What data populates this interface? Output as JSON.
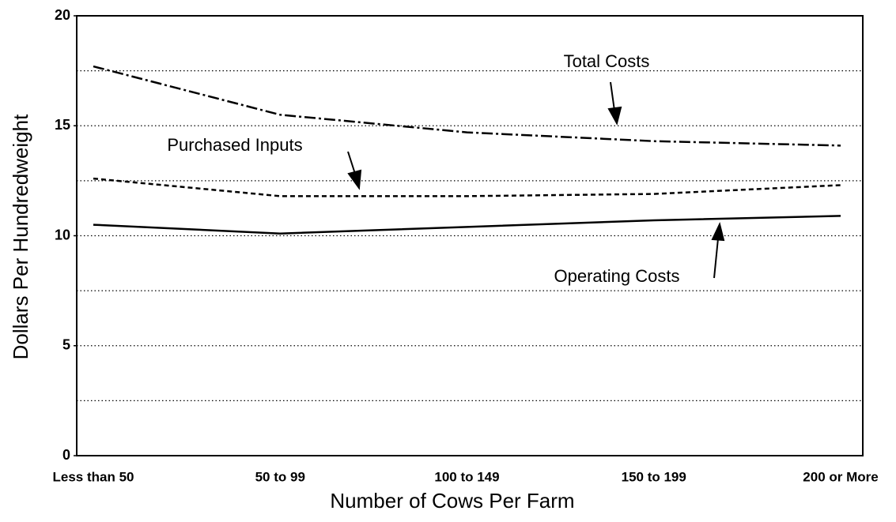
{
  "chart_data": {
    "type": "line",
    "x_label": "Number of Cows Per Farm",
    "y_label": "Dollars Per Hundredweight",
    "categories": [
      "Less than 50",
      "50 to 99",
      "100 to 149",
      "150 to 199",
      "200 or More"
    ],
    "series": [
      {
        "name": "Total Costs",
        "color": "#000000",
        "style": "dashdot",
        "values": [
          17.7,
          15.5,
          14.7,
          14.3,
          14.1
        ]
      },
      {
        "name": "Purchased Inputs",
        "color": "#000000",
        "style": "dashed",
        "values": [
          12.6,
          11.8,
          11.8,
          11.9,
          12.3
        ]
      },
      {
        "name": "Operating Costs",
        "color": "#000000",
        "style": "solid",
        "values": [
          10.5,
          10.1,
          10.4,
          10.7,
          10.9
        ]
      }
    ],
    "ylim": [
      0,
      20
    ],
    "yticks": [
      0,
      5,
      10,
      15,
      20
    ],
    "ygrid": [
      2.5,
      5,
      7.5,
      10,
      12.5,
      15,
      17.5
    ]
  }
}
